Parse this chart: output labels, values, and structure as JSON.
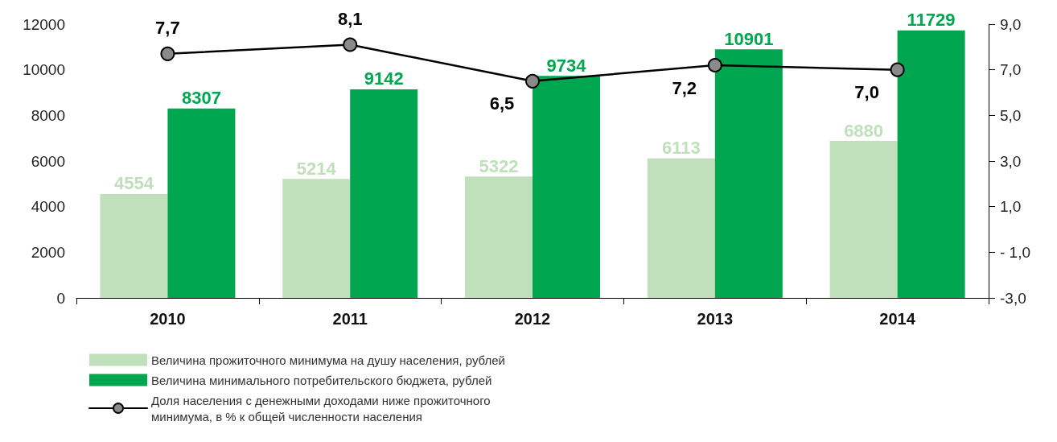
{
  "chart_data": {
    "type": "bar",
    "categories": [
      "2010",
      "2011",
      "2012",
      "2013",
      "2014"
    ],
    "series": [
      {
        "name": "Величина прожиточного минимума на душу населения, рублей",
        "color": "#c0dfbb",
        "values": [
          4554,
          5214,
          5322,
          6113,
          6880
        ],
        "value_labels": [
          "4554",
          "5214",
          "5322",
          "6113",
          "6880"
        ]
      },
      {
        "name": "Величина минимального потребительского бюджета, рублей",
        "color": "#00a650",
        "values": [
          8307,
          9142,
          9734,
          10901,
          11729
        ],
        "value_labels": [
          "8307",
          "9142",
          "9734",
          "10901",
          "11729"
        ]
      },
      {
        "name": "Доля населения с денежными доходами ниже прожиточного минимума, в % к общей численности населения",
        "type": "line",
        "axis": "y2",
        "color": "#000000",
        "values": [
          7.7,
          8.1,
          6.5,
          7.2,
          7.0
        ],
        "value_labels": [
          "7,7",
          "8,1",
          "6,5",
          "7,2",
          "7,0"
        ]
      }
    ],
    "ylim": [
      0,
      12000
    ],
    "yticks": [
      0,
      2000,
      4000,
      6000,
      8000,
      10000,
      12000
    ],
    "y2lim": [
      -3,
      9
    ],
    "y2ticks": [
      {
        "value": -3,
        "label": "-3,0"
      },
      {
        "value": -1,
        "label": "- 1,0"
      },
      {
        "value": 1,
        "label": "1,0"
      },
      {
        "value": 3,
        "label": "3,0"
      },
      {
        "value": 5,
        "label": "5,0"
      },
      {
        "value": 7,
        "label": "7,0"
      },
      {
        "value": 9,
        "label": "9,0"
      }
    ],
    "grid": false,
    "legend": "bottom left",
    "marker": "circle",
    "line_style": "solid"
  }
}
